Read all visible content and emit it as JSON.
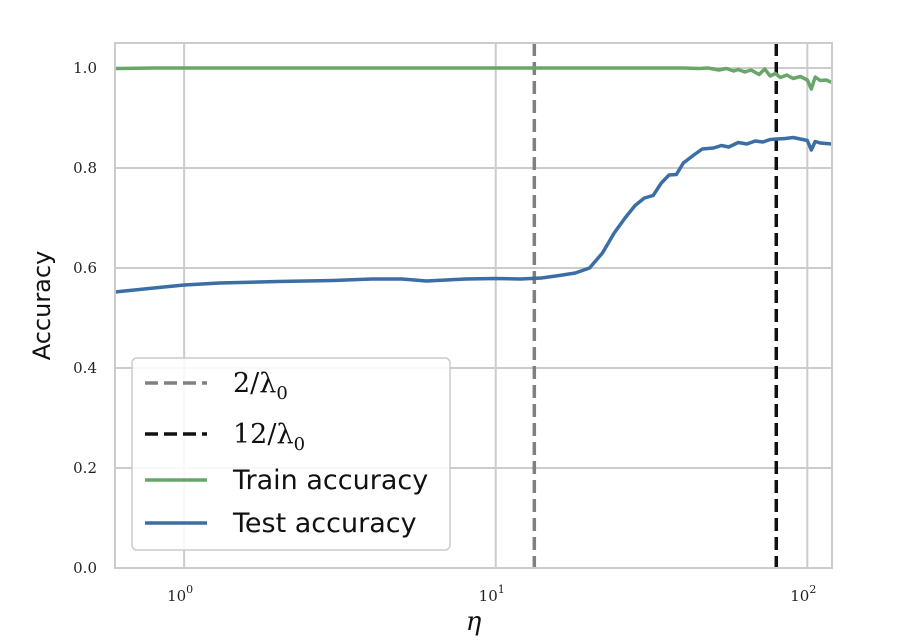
{
  "chart_data": {
    "type": "line",
    "title": "",
    "xlabel": "η",
    "ylabel": "Accuracy",
    "xscale": "log",
    "xlim": [
      0.6,
      120
    ],
    "ylim": [
      0.0,
      1.05
    ],
    "grid": true,
    "legend_position": "bottom-left",
    "x_ticks": [
      1,
      10,
      100
    ],
    "x_tick_labels": [
      {
        "base": "10",
        "exp": "0"
      },
      {
        "base": "10",
        "exp": "1"
      },
      {
        "base": "10",
        "exp": "2"
      }
    ],
    "y_ticks": [
      0.0,
      0.2,
      0.4,
      0.6,
      0.8,
      1.0
    ],
    "y_tick_labels": [
      "0.0",
      "0.2",
      "0.4",
      "0.6",
      "0.8",
      "1.0"
    ],
    "vlines": [
      {
        "name": "2/λ0",
        "x": 13.3,
        "color": "#808080",
        "style": "dashed"
      },
      {
        "name": "12/λ0",
        "x": 79.5,
        "color": "#111111",
        "style": "dashed"
      }
    ],
    "series": [
      {
        "name": "Train accuracy",
        "color": "#6aa56a",
        "x": [
          0.6,
          0.8,
          1.0,
          2.0,
          5.0,
          10.0,
          20.0,
          30.0,
          40.0,
          45.0,
          48.0,
          52.0,
          55.0,
          58.0,
          60.0,
          63.0,
          66.0,
          70.0,
          73.0,
          76.0,
          79.0,
          82.0,
          86.0,
          90.0,
          95.0,
          100.0,
          103.0,
          106.0,
          110.0,
          115.0,
          120.0
        ],
        "y": [
          0.999,
          1.0,
          1.0,
          1.0,
          1.0,
          1.0,
          1.0,
          1.0,
          1.0,
          0.999,
          1.0,
          0.996,
          0.999,
          0.994,
          0.997,
          0.992,
          0.996,
          0.987,
          0.998,
          0.984,
          0.989,
          0.981,
          0.986,
          0.979,
          0.983,
          0.976,
          0.958,
          0.982,
          0.975,
          0.976,
          0.971
        ]
      },
      {
        "name": "Test accuracy",
        "color": "#3a6ea5",
        "x": [
          0.6,
          0.8,
          1.0,
          1.3,
          2.0,
          3.0,
          4.0,
          5.0,
          6.0,
          8.0,
          10.0,
          12.0,
          14.0,
          16.0,
          18.0,
          20.0,
          22.0,
          24.0,
          26.0,
          28.0,
          30.0,
          32.0,
          34.0,
          36.0,
          38.0,
          40.0,
          43.0,
          46.0,
          50.0,
          53.0,
          56.0,
          60.0,
          64.0,
          68.0,
          72.0,
          76.0,
          80.0,
          85.0,
          90.0,
          95.0,
          100.0,
          103.0,
          106.0,
          110.0,
          115.0,
          120.0
        ],
        "y": [
          0.552,
          0.56,
          0.566,
          0.57,
          0.573,
          0.575,
          0.578,
          0.578,
          0.574,
          0.578,
          0.579,
          0.578,
          0.58,
          0.585,
          0.59,
          0.6,
          0.63,
          0.67,
          0.7,
          0.725,
          0.74,
          0.745,
          0.77,
          0.786,
          0.787,
          0.81,
          0.825,
          0.838,
          0.84,
          0.845,
          0.842,
          0.851,
          0.848,
          0.854,
          0.852,
          0.857,
          0.858,
          0.859,
          0.861,
          0.858,
          0.855,
          0.836,
          0.853,
          0.85,
          0.849,
          0.848
        ]
      }
    ],
    "legend": [
      {
        "label_main": "2/λ",
        "label_sub": "0",
        "color": "#808080",
        "style": "dashed"
      },
      {
        "label_main": "12/λ",
        "label_sub": "0",
        "color": "#111111",
        "style": "dashed"
      },
      {
        "label_main": "Train accuracy",
        "label_sub": "",
        "color": "#6aa56a",
        "style": "solid"
      },
      {
        "label_main": "Test accuracy",
        "label_sub": "",
        "color": "#3a6ea5",
        "style": "solid"
      }
    ]
  }
}
